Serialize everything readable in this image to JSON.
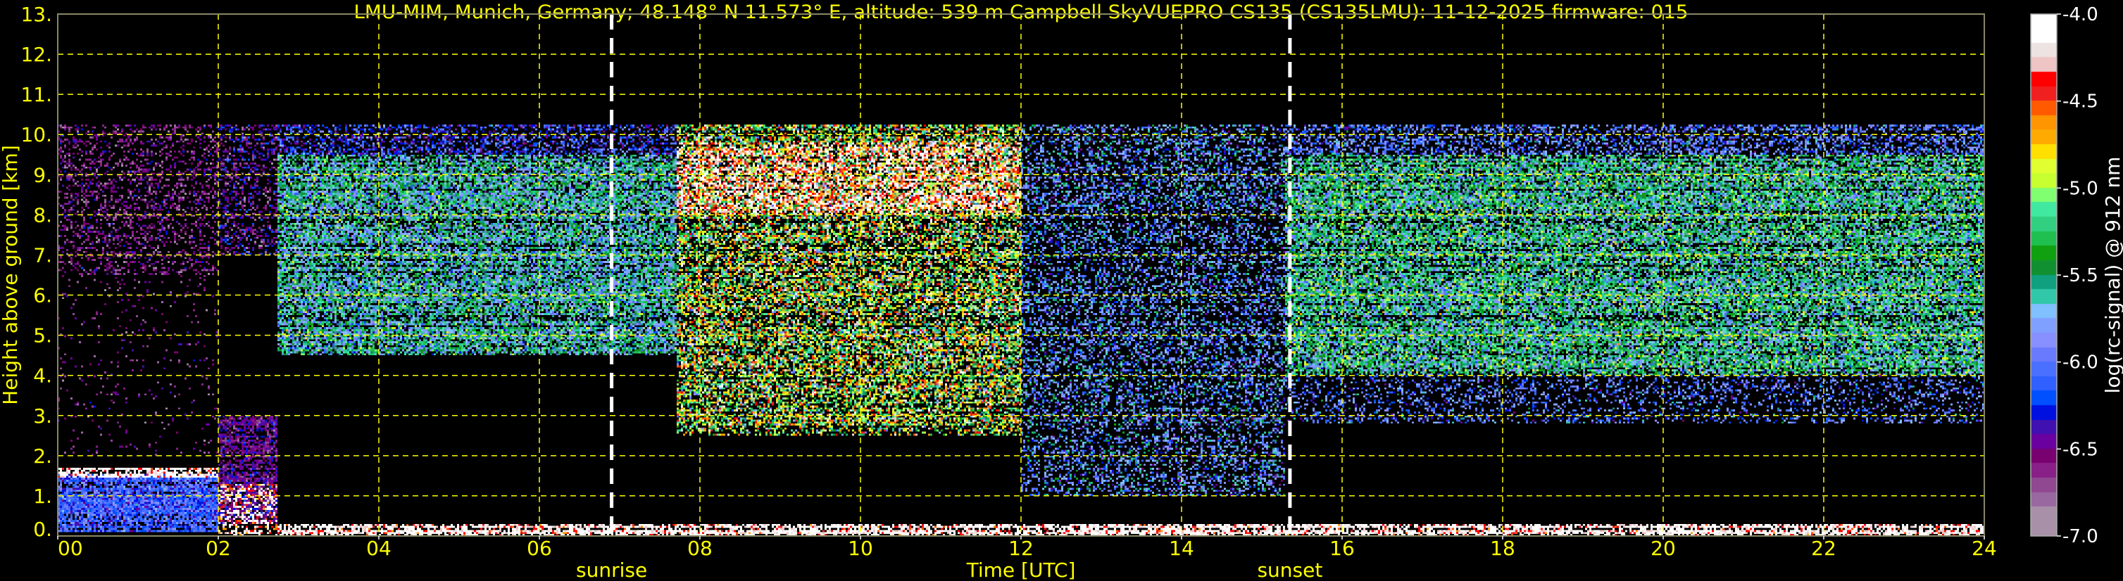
{
  "chart_data": {
    "type": "heatmap",
    "title": "LMU-MIM, Munich, Germany; 48.148° N 11.573° E, altitude: 539 m    Campbell SkyVUEPRO CS135 (CS135LMU): 11-12-2025    firmware: 015",
    "xlabel": "Time [UTC]",
    "ylabel": "Height above ground [km]",
    "xlim": [
      0,
      24
    ],
    "ylim": [
      0,
      13
    ],
    "x_ticks": [
      0,
      2,
      4,
      6,
      8,
      10,
      12,
      14,
      16,
      18,
      20,
      22,
      24
    ],
    "x_tick_labels": [
      "00",
      "02",
      "04",
      "06",
      "08",
      "10",
      "12",
      "14",
      "16",
      "18",
      "20",
      "22",
      "24"
    ],
    "y_ticks": [
      0,
      1,
      2,
      3,
      4,
      5,
      6,
      7,
      8,
      9,
      10,
      11,
      12,
      13
    ],
    "y_tick_labels": [
      "0.",
      "1.",
      "2.",
      "3.",
      "4.",
      "5.",
      "6.",
      "7.",
      "8.",
      "9.",
      "10.",
      "11.",
      "12.",
      "13."
    ],
    "grid": true,
    "grid_color": "#ffff00",
    "background": "#000000",
    "annotations": [
      {
        "label": "sunrise",
        "time": 6.9,
        "color": "#ffffff"
      },
      {
        "label": "sunset",
        "time": 15.35,
        "color": "#ffffff"
      }
    ],
    "colorbar": {
      "label": "log(rc-signal) @ 912 nm",
      "range": [
        -7.0,
        -4.0
      ],
      "tick_values": [
        -4.0,
        -4.5,
        -5.0,
        -5.5,
        -6.0,
        -6.5,
        -7.0
      ],
      "tick_labels": [
        "-4.0",
        "-4.5",
        "-5.0",
        "-5.5",
        "-6.0",
        "-6.5",
        "-7.0"
      ],
      "colors_top_to_bottom": [
        "#ffffff",
        "#ffffff",
        "#ede3e3",
        "#efc4c4",
        "#ff0000",
        "#f02020",
        "#ff5a00",
        "#ff9500",
        "#ffaa00",
        "#ffe000",
        "#e0ff30",
        "#c8ff30",
        "#80ff70",
        "#40e8a0",
        "#30d080",
        "#20c050",
        "#10a010",
        "#109030",
        "#10a080",
        "#30c8a8",
        "#80c0ff",
        "#80a0ff",
        "#8890ff",
        "#6a7aff",
        "#4a70ff",
        "#3060ff",
        "#0050ff",
        "#0010e0",
        "#4010b0",
        "#6a00a0",
        "#780070",
        "#882088",
        "#904890",
        "#9a68a0",
        "#a890a8",
        "#a890a8"
      ]
    },
    "features": [
      {
        "t": [
          0,
          2.0
        ],
        "h": [
          6.5,
          10.25
        ],
        "value": -6.6,
        "spread": 0.2,
        "density": 0.35
      },
      {
        "t": [
          0,
          2.0
        ],
        "h": [
          2.0,
          6.5
        ],
        "value": -6.6,
        "spread": 0.2,
        "density": 0.06
      },
      {
        "t": [
          0,
          2.0
        ],
        "h": [
          0.1,
          1.55
        ],
        "value": -6.1,
        "spread": 0.25,
        "density": 1.0
      },
      {
        "t": [
          0,
          2.0
        ],
        "h": [
          1.45,
          1.7
        ],
        "value": -4.1,
        "spread": 0.3,
        "density": 0.9
      },
      {
        "t": [
          2.0,
          2.75
        ],
        "h": [
          0.3,
          3.0
        ],
        "value": -6.5,
        "spread": 0.2,
        "density": 0.8
      },
      {
        "t": [
          2.0,
          2.75
        ],
        "h": [
          0.0,
          1.3
        ],
        "value": -4.2,
        "spread": 0.4,
        "density": 0.5
      },
      {
        "t": [
          2.0,
          2.75
        ],
        "h": [
          7.0,
          10.25
        ],
        "value": -6.5,
        "spread": 0.3,
        "density": 0.4
      },
      {
        "t": [
          2.75,
          7.7
        ],
        "h": [
          4.5,
          9.5
        ],
        "value": -5.6,
        "spread": 0.45,
        "density": 0.85
      },
      {
        "t": [
          2.75,
          7.7
        ],
        "h": [
          9.5,
          10.25
        ],
        "value": -6.2,
        "spread": 0.3,
        "density": 0.5
      },
      {
        "t": [
          7.7,
          12.0
        ],
        "h": [
          2.5,
          10.25
        ],
        "value": -5.0,
        "spread": 0.7,
        "density": 0.7
      },
      {
        "t": [
          7.7,
          12.0
        ],
        "h": [
          8.0,
          9.8
        ],
        "value": -4.3,
        "spread": 0.4,
        "density": 0.6
      },
      {
        "t": [
          12.0,
          15.3
        ],
        "h": [
          1.0,
          10.25
        ],
        "value": -5.9,
        "spread": 0.4,
        "density": 0.45
      },
      {
        "t": [
          15.3,
          24.0
        ],
        "h": [
          4.0,
          9.5
        ],
        "value": -5.5,
        "spread": 0.45,
        "density": 0.85
      },
      {
        "t": [
          15.3,
          24.0
        ],
        "h": [
          2.8,
          4.0
        ],
        "value": -6.0,
        "spread": 0.3,
        "density": 0.3
      },
      {
        "t": [
          15.3,
          24.0
        ],
        "h": [
          9.5,
          10.25
        ],
        "value": -6.0,
        "spread": 0.3,
        "density": 0.5
      },
      {
        "t": [
          2.75,
          24.0
        ],
        "h": [
          0.0,
          0.3
        ],
        "value": -4.1,
        "spread": 0.3,
        "density": 0.9
      }
    ]
  }
}
